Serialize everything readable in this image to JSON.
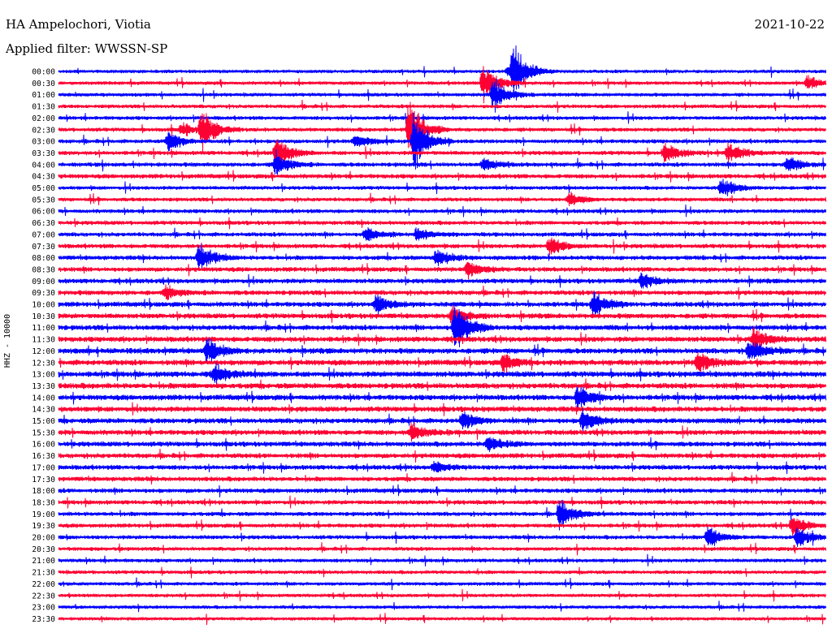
{
  "header": {
    "station": "HA Ampelochori, Viotia",
    "date": "2021-10-22",
    "filter": "Applied filter: WWSSN-SP"
  },
  "chart_data": {
    "type": "line",
    "title": "HA Ampelochori, Viotia",
    "subtitle": "Applied filter: WWSSN-SP",
    "date": "2021-10-22",
    "ylabel": "HHZ - 10000",
    "xlabel": "",
    "rows": [
      "00:00",
      "00:30",
      "01:00",
      "01:30",
      "02:00",
      "02:30",
      "03:00",
      "03:30",
      "04:00",
      "04:30",
      "05:00",
      "05:30",
      "06:00",
      "06:30",
      "07:00",
      "07:30",
      "08:00",
      "08:30",
      "09:00",
      "09:30",
      "10:00",
      "10:30",
      "11:00",
      "11:30",
      "12:00",
      "12:30",
      "13:00",
      "13:30",
      "14:00",
      "14:30",
      "15:00",
      "15:30",
      "16:00",
      "16:30",
      "17:00",
      "17:30",
      "18:00",
      "18:30",
      "19:00",
      "19:30",
      "20:00",
      "20:30",
      "21:00",
      "21:30",
      "22:00",
      "22:30",
      "23:00",
      "23:30"
    ],
    "row_colors": [
      "#0000ff",
      "#ff0033"
    ],
    "trace_minutes_per_row": 30,
    "grid": false,
    "legend": "none",
    "events": [
      {
        "row": "00:00",
        "minute": 17.6,
        "amplitude": 7
      },
      {
        "row": "00:00",
        "minute": 17.8,
        "amplitude": 40
      },
      {
        "row": "00:30",
        "minute": 16.6,
        "amplitude": 30
      },
      {
        "row": "00:30",
        "minute": 29.3,
        "amplitude": 11
      },
      {
        "row": "01:00",
        "minute": 17.0,
        "amplitude": 25
      },
      {
        "row": "02:30",
        "minute": 4.8,
        "amplitude": 10
      },
      {
        "row": "02:30",
        "minute": 5.6,
        "amplitude": 30
      },
      {
        "row": "02:30",
        "minute": 13.7,
        "amplitude": 45
      },
      {
        "row": "03:00",
        "minute": 13.9,
        "amplitude": 40
      },
      {
        "row": "03:00",
        "minute": 4.3,
        "amplitude": 14
      },
      {
        "row": "03:00",
        "minute": 11.6,
        "amplitude": 9
      },
      {
        "row": "03:30",
        "minute": 8.5,
        "amplitude": 25
      },
      {
        "row": "03:30",
        "minute": 26.2,
        "amplitude": 17
      },
      {
        "row": "03:30",
        "minute": 23.7,
        "amplitude": 15
      },
      {
        "row": "04:00",
        "minute": 8.5,
        "amplitude": 18
      },
      {
        "row": "04:00",
        "minute": 28.5,
        "amplitude": 12
      },
      {
        "row": "04:00",
        "minute": 16.6,
        "amplitude": 10
      },
      {
        "row": "05:00",
        "minute": 25.9,
        "amplitude": 16
      },
      {
        "row": "05:30",
        "minute": 20.0,
        "amplitude": 9
      },
      {
        "row": "07:00",
        "minute": 12.0,
        "amplitude": 10
      },
      {
        "row": "07:00",
        "minute": 14.0,
        "amplitude": 9
      },
      {
        "row": "07:30",
        "minute": 19.2,
        "amplitude": 14
      },
      {
        "row": "08:00",
        "minute": 14.8,
        "amplitude": 12
      },
      {
        "row": "08:00",
        "minute": 5.5,
        "amplitude": 20
      },
      {
        "row": "08:30",
        "minute": 16.0,
        "amplitude": 12
      },
      {
        "row": "09:00",
        "minute": 22.8,
        "amplitude": 12
      },
      {
        "row": "09:30",
        "minute": 4.2,
        "amplitude": 10
      },
      {
        "row": "10:00",
        "minute": 12.4,
        "amplitude": 14
      },
      {
        "row": "10:00",
        "minute": 20.9,
        "amplitude": 20
      },
      {
        "row": "10:30",
        "minute": 15.4,
        "amplitude": 15
      },
      {
        "row": "11:00",
        "minute": 15.5,
        "amplitude": 40
      },
      {
        "row": "11:30",
        "minute": 27.2,
        "amplitude": 16
      },
      {
        "row": "12:00",
        "minute": 27.0,
        "amplitude": 18
      },
      {
        "row": "12:00",
        "minute": 5.8,
        "amplitude": 20
      },
      {
        "row": "12:30",
        "minute": 17.4,
        "amplitude": 14
      },
      {
        "row": "12:30",
        "minute": 25.0,
        "amplitude": 16
      },
      {
        "row": "13:00",
        "minute": 6.1,
        "amplitude": 14
      },
      {
        "row": "14:00",
        "minute": 20.3,
        "amplitude": 18
      },
      {
        "row": "15:00",
        "minute": 20.5,
        "amplitude": 17
      },
      {
        "row": "15:00",
        "minute": 15.8,
        "amplitude": 13
      },
      {
        "row": "15:30",
        "minute": 13.8,
        "amplitude": 14
      },
      {
        "row": "16:00",
        "minute": 16.8,
        "amplitude": 13
      },
      {
        "row": "17:00",
        "minute": 14.7,
        "amplitude": 9
      },
      {
        "row": "19:00",
        "minute": 19.6,
        "amplitude": 22
      },
      {
        "row": "19:30",
        "minute": 28.7,
        "amplitude": 16
      },
      {
        "row": "20:00",
        "minute": 25.4,
        "amplitude": 16
      },
      {
        "row": "20:00",
        "minute": 28.9,
        "amplitude": 16
      }
    ]
  },
  "icons": {}
}
